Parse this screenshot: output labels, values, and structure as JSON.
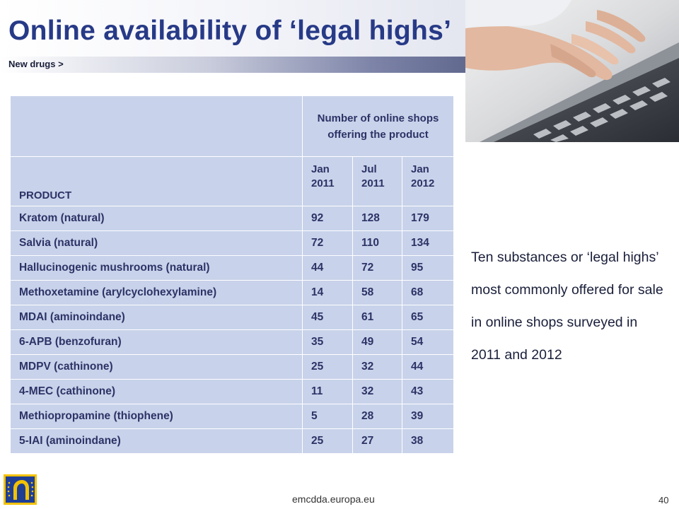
{
  "title": "Online availability of ‘legal highs’",
  "section": "New drugs >",
  "table": {
    "span_header": "Number of online shops offering the product",
    "product_header": "PRODUCT",
    "periods": [
      "Jan 2011",
      "Jul 2011",
      "Jan 2012"
    ],
    "rows": [
      {
        "product": "Kratom (natural)",
        "values": [
          "92",
          "128",
          "179"
        ]
      },
      {
        "product": "Salvia (natural)",
        "values": [
          "72",
          "110",
          "134"
        ]
      },
      {
        "product": "Hallucinogenic mushrooms (natural)",
        "values": [
          "44",
          "72",
          "95"
        ]
      },
      {
        "product": "Methoxetamine (arylcyclohexylamine)",
        "values": [
          "14",
          "58",
          "68"
        ]
      },
      {
        "product": "MDAI (aminoindane)",
        "values": [
          "45",
          "61",
          "65"
        ]
      },
      {
        "product": "6-APB (benzofuran)",
        "values": [
          "35",
          "49",
          "54"
        ]
      },
      {
        "product": "MDPV (cathinone)",
        "values": [
          "25",
          "32",
          "44"
        ]
      },
      {
        "product": "4-MEC (cathinone)",
        "values": [
          "11",
          "32",
          "43"
        ]
      },
      {
        "product": "Methiopropamine (thiophene)",
        "values": [
          "5",
          "28",
          "39"
        ]
      },
      {
        "product": "5-IAI (aminoindane)",
        "values": [
          "25",
          "27",
          "38"
        ]
      }
    ]
  },
  "description": "Ten substances or ‘legal highs’ most commonly offered for sale in online shops surveyed in 2011 and 2012",
  "footer": {
    "url": "emcdda.europa.eu",
    "page": "40"
  },
  "colors": {
    "title": "#273a87",
    "table_cell": "#c8d2ea",
    "table_text": "#2c3366",
    "logo_yellow": "#f2c200",
    "logo_blue": "#1e3e96"
  },
  "icons": {
    "photo": "hands-typing-on-keyboard-photo",
    "logo": "emcdda-logo"
  }
}
